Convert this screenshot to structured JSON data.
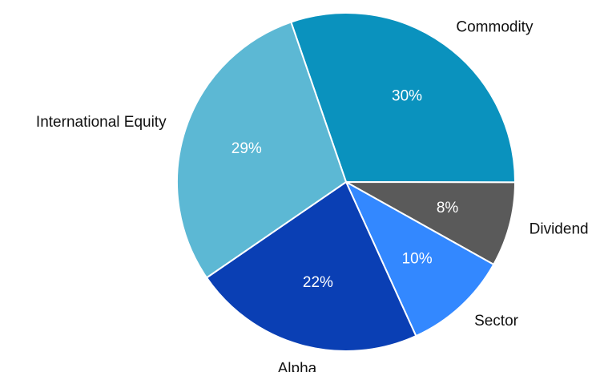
{
  "chart_data": {
    "type": "pie",
    "categories": [
      "Commodity",
      "Dividend",
      "Sector",
      "Alpha",
      "International Equity"
    ],
    "values": [
      30,
      8,
      10,
      22,
      29
    ],
    "value_labels": [
      "30%",
      "8%",
      "10%",
      "22%",
      "29%"
    ],
    "colors": [
      "#0a92be",
      "#5a5a5a",
      "#3388ff",
      "#0a3fb4",
      "#5cb8d4"
    ]
  }
}
